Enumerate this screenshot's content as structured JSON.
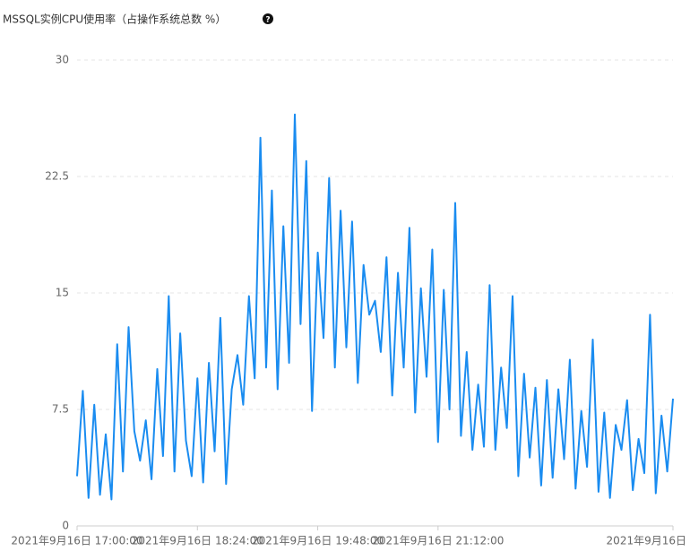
{
  "chart_data": {
    "type": "line",
    "title": "MSSQL实例CPU使用率（占操作系统总数 %）",
    "help_icon": "?",
    "color": "#1a8cf0",
    "x": [
      "2021-09-16T17:00",
      "2021-09-16T17:04",
      "2021-09-16T17:08",
      "2021-09-16T17:12",
      "2021-09-16T17:16",
      "2021-09-16T17:20",
      "2021-09-16T17:24",
      "2021-09-16T17:28",
      "2021-09-16T17:32",
      "2021-09-16T17:36",
      "2021-09-16T17:40",
      "2021-09-16T17:44",
      "2021-09-16T17:48",
      "2021-09-16T17:52",
      "2021-09-16T17:56",
      "2021-09-16T18:00",
      "2021-09-16T18:04",
      "2021-09-16T18:08",
      "2021-09-16T18:12",
      "2021-09-16T18:16",
      "2021-09-16T18:20",
      "2021-09-16T18:24",
      "2021-09-16T18:28",
      "2021-09-16T18:32",
      "2021-09-16T18:36",
      "2021-09-16T18:40",
      "2021-09-16T18:44",
      "2021-09-16T18:48",
      "2021-09-16T18:52",
      "2021-09-16T18:56",
      "2021-09-16T19:00",
      "2021-09-16T19:04",
      "2021-09-16T19:08",
      "2021-09-16T19:12",
      "2021-09-16T19:16",
      "2021-09-16T19:20",
      "2021-09-16T19:24",
      "2021-09-16T19:28",
      "2021-09-16T19:32",
      "2021-09-16T19:36",
      "2021-09-16T19:40",
      "2021-09-16T19:44",
      "2021-09-16T19:48",
      "2021-09-16T19:52",
      "2021-09-16T19:56",
      "2021-09-16T20:00",
      "2021-09-16T20:04",
      "2021-09-16T20:08",
      "2021-09-16T20:12",
      "2021-09-16T20:16",
      "2021-09-16T20:20",
      "2021-09-16T20:24",
      "2021-09-16T20:28",
      "2021-09-16T20:32",
      "2021-09-16T20:36",
      "2021-09-16T20:40",
      "2021-09-16T20:44",
      "2021-09-16T20:48",
      "2021-09-16T20:52",
      "2021-09-16T20:56",
      "2021-09-16T21:00",
      "2021-09-16T21:04",
      "2021-09-16T21:08",
      "2021-09-16T21:12",
      "2021-09-16T21:16",
      "2021-09-16T21:20",
      "2021-09-16T21:24",
      "2021-09-16T21:28",
      "2021-09-16T21:32",
      "2021-09-16T21:36",
      "2021-09-16T21:40",
      "2021-09-16T21:44",
      "2021-09-16T21:48",
      "2021-09-16T21:52",
      "2021-09-16T21:56",
      "2021-09-16T22:00",
      "2021-09-16T22:04",
      "2021-09-16T22:08",
      "2021-09-16T22:12",
      "2021-09-16T22:16",
      "2021-09-16T22:20",
      "2021-09-16T22:24",
      "2021-09-16T22:28",
      "2021-09-16T22:32",
      "2021-09-16T22:36",
      "2021-09-16T22:40",
      "2021-09-16T22:44",
      "2021-09-16T22:48",
      "2021-09-16T22:52",
      "2021-09-16T22:56",
      "2021-09-16T23:00",
      "2021-09-16T23:04",
      "2021-09-16T23:08",
      "2021-09-16T23:12",
      "2021-09-16T23:16",
      "2021-09-16T23:20",
      "2021-09-16T23:24",
      "2021-09-16T23:28",
      "2021-09-16T23:32",
      "2021-09-16T23:36",
      "2021-09-16T23:40",
      "2021-09-16T23:44",
      "2021-09-16T23:48",
      "2021-09-16T23:52",
      "2021-09-16T23:56"
    ],
    "values": [
      3.2,
      8.7,
      1.8,
      7.8,
      2,
      5.9,
      1.7,
      11.7,
      3.5,
      12.8,
      6.1,
      4.2,
      6.8,
      3,
      10.1,
      4.5,
      14.8,
      3.5,
      12.4,
      5.5,
      3.2,
      9.5,
      2.8,
      10.5,
      4.8,
      13.4,
      2.7,
      8.8,
      11,
      7.8,
      14.8,
      9.5,
      25,
      10.2,
      21.6,
      8.8,
      19.3,
      10.5,
      26.5,
      13,
      23.5,
      7.4,
      17.6,
      12.1,
      22.4,
      10.2,
      20.3,
      11.5,
      19.6,
      9.2,
      16.8,
      13.6,
      14.5,
      11.2,
      17.3,
      8.4,
      16.3,
      10.2,
      19.2,
      7.3,
      15.3,
      9.6,
      17.8,
      5.4,
      15.2,
      7.5,
      20.8,
      5.8,
      11.2,
      4.9,
      9.1,
      5.1,
      15.5,
      4.9,
      10.2,
      6.3,
      14.8,
      3.2,
      9.8,
      4.4,
      8.9,
      2.6,
      9.4,
      3.1,
      8.8,
      4.3,
      10.7,
      2.4,
      7.4,
      3.8,
      12,
      2.2,
      7.3,
      1.8,
      6.5,
      4.9,
      8.1,
      2.3,
      5.6,
      3.4,
      13.6,
      2.1,
      7.1,
      3.5,
      8.2
    ],
    "xlim": [
      "2021-09-16T17:00",
      "2021-09-16T23:56"
    ],
    "xticks": [
      {
        "value": "2021-09-16T17:00",
        "label": "2021年9月16日 17:00:00"
      },
      {
        "value": "2021-09-16T18:24",
        "label": "2021年9月16日 18:24:00"
      },
      {
        "value": "2021-09-16T19:48",
        "label": "2021年9月16日 19:48:00"
      },
      {
        "value": "2021-09-16T21:12",
        "label": "2021年9月16日 21:12:00"
      },
      {
        "value": "2021-09-16T23:56",
        "label": "2021年9月16日"
      }
    ],
    "ylim": [
      0,
      30
    ],
    "yticks": [
      0,
      7.5,
      15,
      22.5,
      30
    ],
    "grid": true
  }
}
